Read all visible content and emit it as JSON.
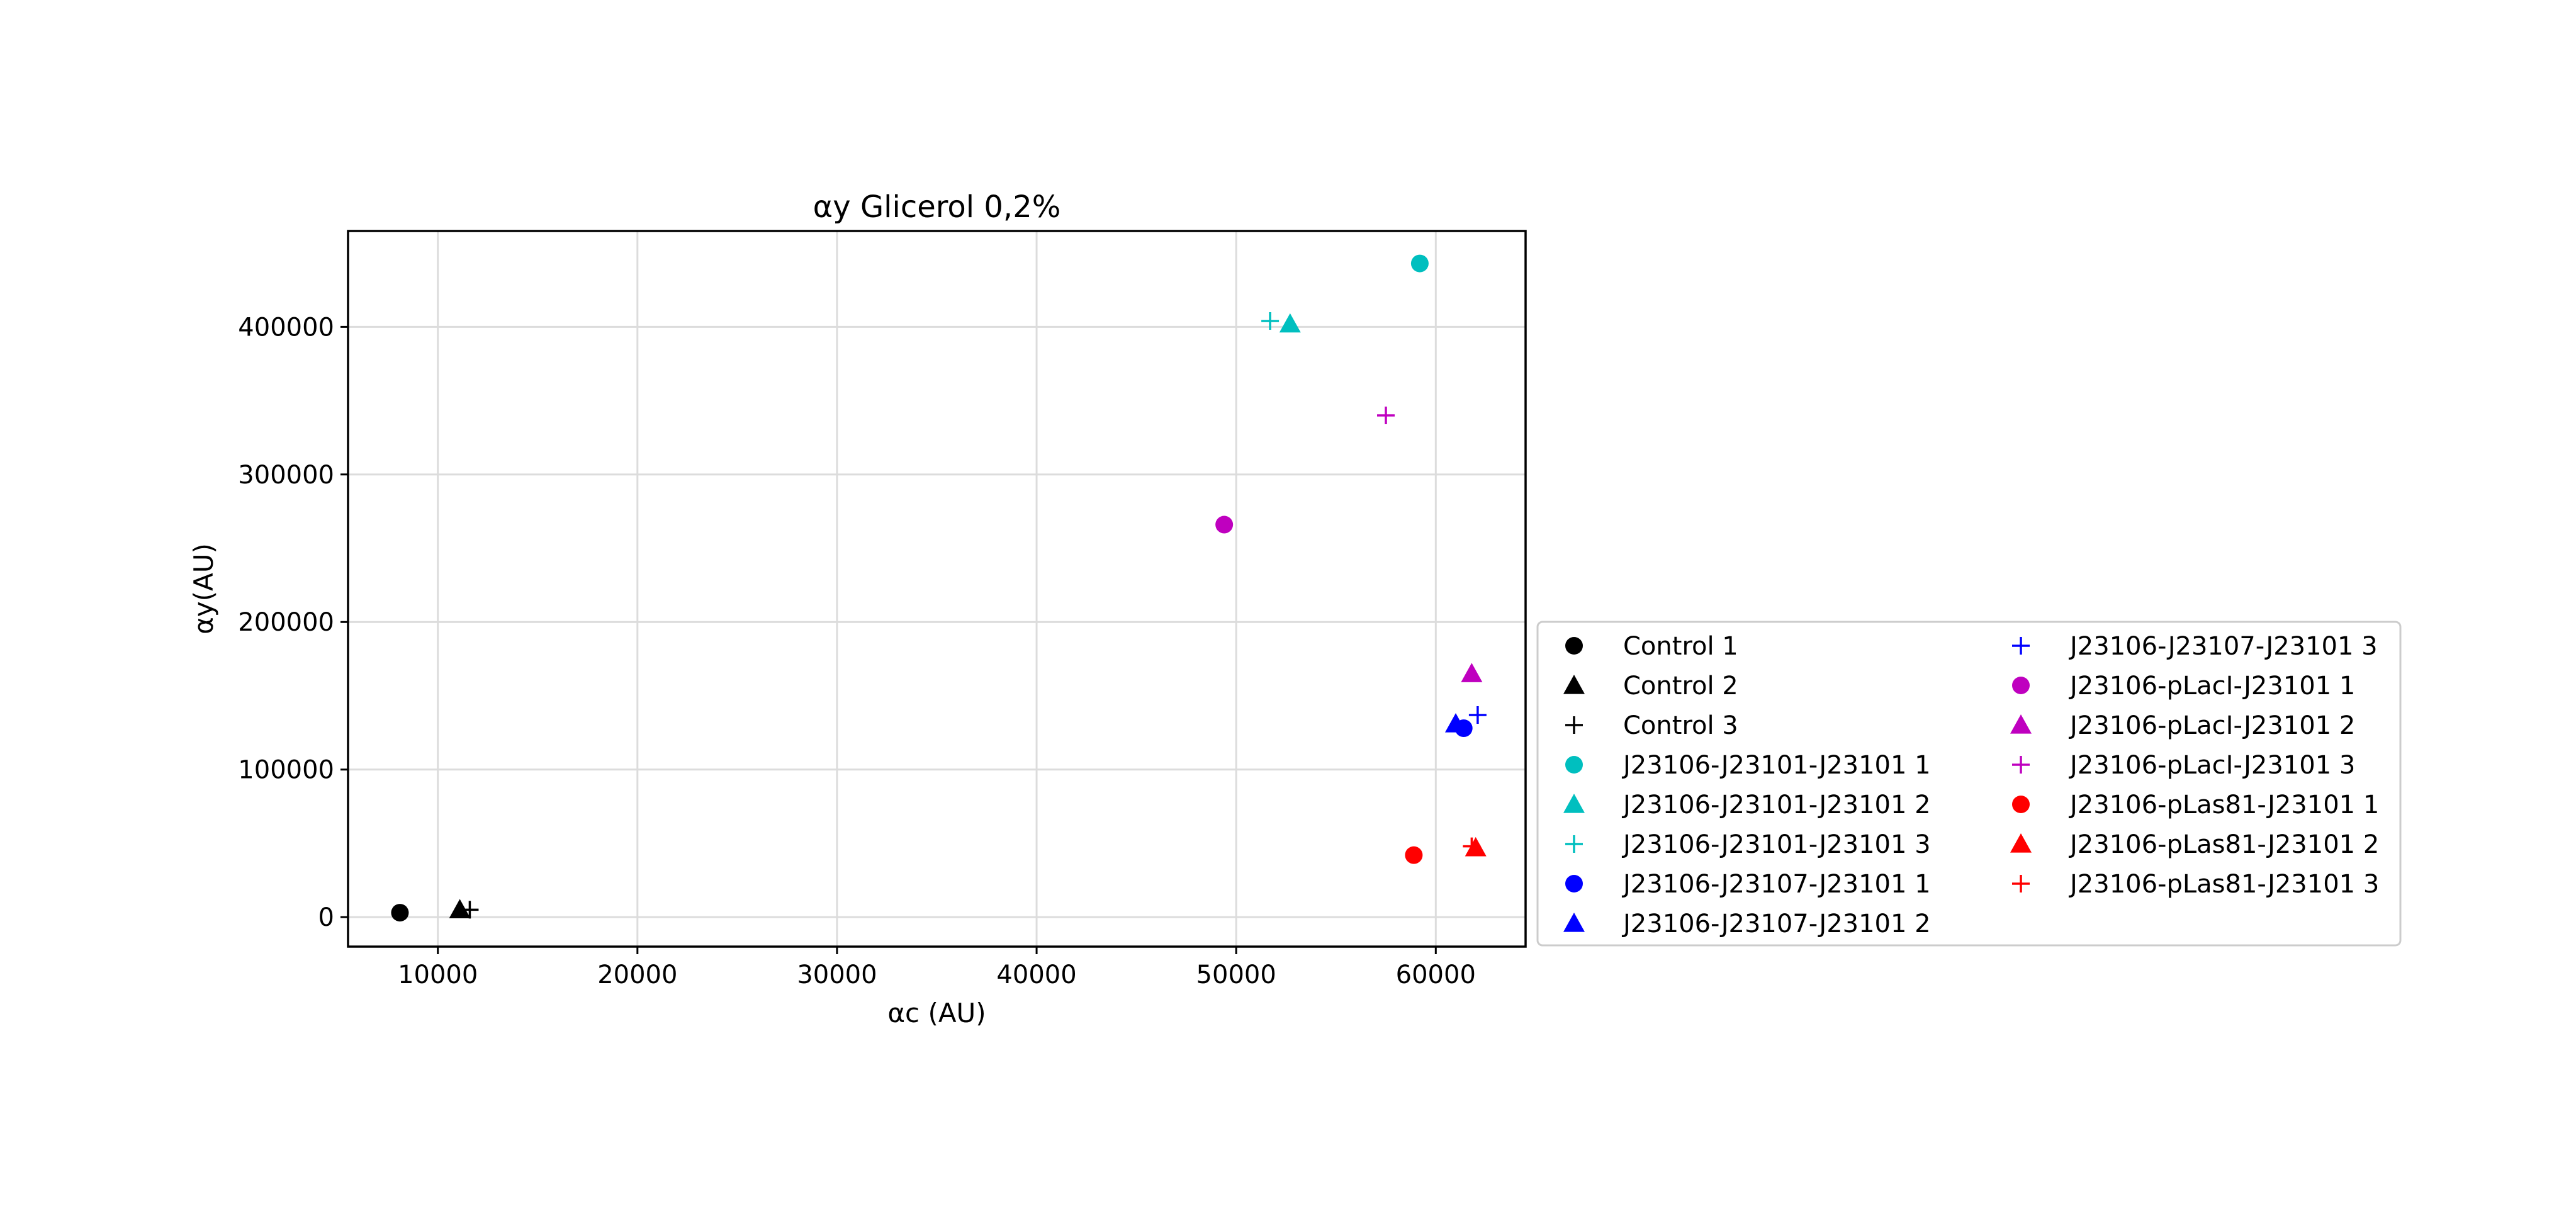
{
  "chart_data": {
    "type": "scatter",
    "title": "αy Glicerol 0,2%",
    "xlabel": "αc (AU)",
    "ylabel": "αy(AU)",
    "xlim": [
      5500,
      64500
    ],
    "ylim": [
      -20000,
      465000
    ],
    "xticks": [
      10000,
      20000,
      30000,
      40000,
      50000,
      60000
    ],
    "yticks": [
      0,
      100000,
      200000,
      300000,
      400000
    ],
    "xtick_labels": [
      "10000",
      "20000",
      "30000",
      "40000",
      "50000",
      "60000"
    ],
    "ytick_labels": [
      "0",
      "100000",
      "200000",
      "300000",
      "400000"
    ],
    "grid": true,
    "legend_position": "right of plot, lower",
    "series": [
      {
        "name": "Control 1",
        "color": "#000000",
        "marker": "circle",
        "x": [
          8100
        ],
        "y": [
          3000
        ]
      },
      {
        "name": "Control 2",
        "color": "#000000",
        "marker": "triangle",
        "x": [
          11100
        ],
        "y": [
          5000
        ]
      },
      {
        "name": "Control 3",
        "color": "#000000",
        "marker": "plus",
        "x": [
          11600
        ],
        "y": [
          5000
        ]
      },
      {
        "name": "J23106-J23101-J23101 1",
        "color": "#00bfbf",
        "marker": "circle",
        "x": [
          59200
        ],
        "y": [
          443000
        ]
      },
      {
        "name": "J23106-J23101-J23101 2",
        "color": "#00bfbf",
        "marker": "triangle",
        "x": [
          52700
        ],
        "y": [
          402000
        ]
      },
      {
        "name": "J23106-J23101-J23101 3",
        "color": "#00bfbf",
        "marker": "plus",
        "x": [
          51700
        ],
        "y": [
          404000
        ]
      },
      {
        "name": "J23106-J23107-J23101 1",
        "color": "#0000ff",
        "marker": "circle",
        "x": [
          61400
        ],
        "y": [
          128000
        ]
      },
      {
        "name": "J23106-J23107-J23101 2",
        "color": "#0000ff",
        "marker": "triangle",
        "x": [
          61000
        ],
        "y": [
          131000
        ]
      },
      {
        "name": "J23106-J23107-J23101 3",
        "color": "#0000ff",
        "marker": "plus",
        "x": [
          62100
        ],
        "y": [
          137000
        ]
      },
      {
        "name": "J23106-pLacI-J23101 1",
        "color": "#bf00bf",
        "marker": "circle",
        "x": [
          49400
        ],
        "y": [
          266000
        ]
      },
      {
        "name": "J23106-pLacI-J23101 2",
        "color": "#bf00bf",
        "marker": "triangle",
        "x": [
          61800
        ],
        "y": [
          165000
        ]
      },
      {
        "name": "J23106-pLacI-J23101 3",
        "color": "#bf00bf",
        "marker": "plus",
        "x": [
          57500
        ],
        "y": [
          340000
        ]
      },
      {
        "name": "J23106-pLas81-J23101 1",
        "color": "#ff0000",
        "marker": "circle",
        "x": [
          58900
        ],
        "y": [
          42000
        ]
      },
      {
        "name": "J23106-pLas81-J23101 2",
        "color": "#ff0000",
        "marker": "triangle",
        "x": [
          62000
        ],
        "y": [
          47000
        ]
      },
      {
        "name": "J23106-pLas81-J23101 3",
        "color": "#ff0000",
        "marker": "plus",
        "x": [
          61800
        ],
        "y": [
          48000
        ]
      }
    ]
  }
}
